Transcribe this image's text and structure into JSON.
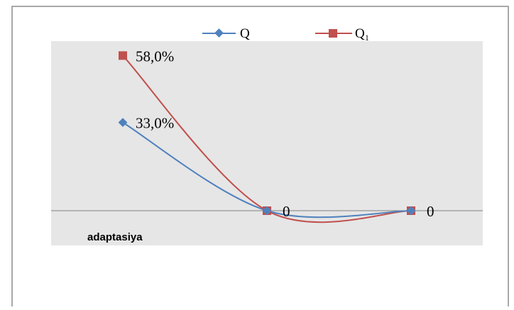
{
  "chart_data": {
    "type": "line",
    "categories": [
      "adaptasiya",
      "",
      ""
    ],
    "series": [
      {
        "name": "Q",
        "values": [
          33.0,
          0,
          0
        ],
        "data_labels": [
          "33,0%",
          "0",
          "0"
        ],
        "color": "#4f81bd",
        "marker": "diamond"
      },
      {
        "name": "Q₁",
        "values": [
          58.0,
          0,
          0
        ],
        "data_labels": [
          "58,0%",
          "0",
          "0"
        ],
        "color": "#c0504d",
        "marker": "square"
      }
    ],
    "ylim": [
      -15,
      65
    ],
    "smooth": true,
    "legend_position": "top",
    "plot_background": "#e6e6e6",
    "grid": false
  }
}
